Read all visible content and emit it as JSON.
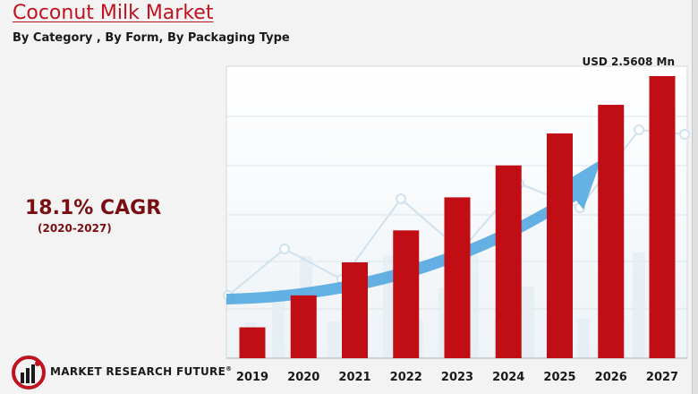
{
  "header": {
    "title": "Coconut Milk Market",
    "subtitle": "By Category , By Form, By Packaging Type"
  },
  "cagr": {
    "value": "18.1% CAGR",
    "period": "(2020-2027)"
  },
  "brand": {
    "name": "MARKET RESEARCH FUTURE",
    "registered": "®"
  },
  "colors": {
    "bar": "#c10d14",
    "title": "#c0121e",
    "cagr": "#7a0d12",
    "arrow": "#4aa3df"
  },
  "chart_data": {
    "type": "bar",
    "categories": [
      "2019",
      "2020",
      "2021",
      "2022",
      "2023",
      "2024",
      "2025",
      "2026",
      "2027"
    ],
    "series": [
      {
        "values": [
          0.28,
          0.57,
          0.87,
          1.16,
          1.46,
          1.75,
          2.04,
          2.3,
          2.5608
        ]
      }
    ],
    "annotations": [
      {
        "category": "2027",
        "text": "USD 2.5608 Mn"
      }
    ],
    "ylim": [
      0,
      2.65
    ],
    "grid": true,
    "xlabel": "",
    "ylabel": ""
  }
}
